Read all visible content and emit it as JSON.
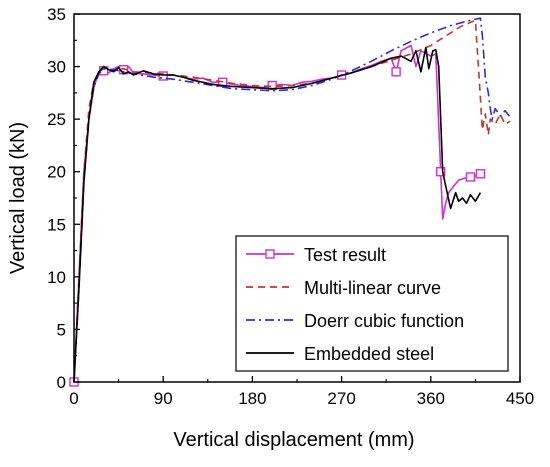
{
  "chart_data": {
    "type": "line",
    "title": "",
    "xlabel": "Vertical displacement (mm)",
    "ylabel": "Vertical load (kN)",
    "xlim": [
      0,
      450
    ],
    "ylim": [
      0,
      35
    ],
    "xticks": [
      0,
      90,
      180,
      270,
      360,
      450
    ],
    "yticks": [
      0,
      5,
      10,
      15,
      20,
      25,
      30,
      35
    ],
    "grid": false,
    "legend_position": "bottom-right",
    "series": [
      {
        "name": "Test result",
        "color": "#cc33cc",
        "dash": "solid",
        "marker": "open-square",
        "x": [
          0,
          5,
          10,
          15,
          20,
          25,
          30,
          35,
          40,
          45,
          50,
          55,
          60,
          70,
          80,
          90,
          100,
          110,
          120,
          130,
          140,
          150,
          160,
          170,
          180,
          190,
          200,
          210,
          220,
          230,
          240,
          250,
          260,
          270,
          280,
          290,
          300,
          310,
          320,
          325,
          330,
          340,
          345,
          350,
          360,
          365,
          370,
          372,
          375,
          378,
          382,
          388,
          395,
          400,
          405,
          410
        ],
        "y": [
          0,
          10,
          20,
          25,
          28,
          29.5,
          29.6,
          29.4,
          29.8,
          30.0,
          29.7,
          30.0,
          29.4,
          29.3,
          29.2,
          29.1,
          29.2,
          29.0,
          28.8,
          28.9,
          28.5,
          28.5,
          28.3,
          28.2,
          28.1,
          28.0,
          28.2,
          28.3,
          28.2,
          28.5,
          28.6,
          28.8,
          28.9,
          29.2,
          29.4,
          29.8,
          30.1,
          30.5,
          30.8,
          29.5,
          31.5,
          32.0,
          30.0,
          31.5,
          31.0,
          31.2,
          20.0,
          15.5,
          17.0,
          18.0,
          18.5,
          19.2,
          19.4,
          19.5,
          19.6,
          19.8
        ],
        "marker_indices": [
          0,
          6,
          10,
          15,
          21,
          26,
          33,
          39,
          46,
          53,
          55
        ]
      },
      {
        "name": "Multi-linear curve",
        "color": "#c0392b",
        "dash": "dashed",
        "x": [
          0,
          5,
          10,
          15,
          20,
          25,
          30,
          40,
          50,
          60,
          80,
          100,
          120,
          140,
          160,
          180,
          200,
          220,
          240,
          260,
          280,
          300,
          320,
          340,
          350,
          360,
          370,
          380,
          390,
          400,
          405,
          408,
          410,
          412,
          415,
          418,
          420,
          425,
          430,
          435,
          440
        ],
        "y": [
          0,
          10,
          20,
          26,
          28.5,
          29.5,
          29.8,
          29.6,
          29.8,
          29.5,
          29.4,
          29.2,
          29.0,
          28.7,
          28.4,
          28.2,
          28.1,
          28.2,
          28.4,
          28.9,
          29.4,
          30.0,
          30.6,
          31.2,
          31.6,
          32.0,
          32.6,
          33.2,
          33.8,
          34.2,
          34.4,
          30.0,
          27.0,
          24.0,
          25.5,
          23.5,
          25.0,
          24.5,
          25.5,
          24.5,
          24.8
        ]
      },
      {
        "name": "Doerr cubic function",
        "color": "#2b2bd9",
        "dash": "dashdot",
        "x": [
          0,
          5,
          10,
          15,
          20,
          25,
          30,
          40,
          50,
          60,
          80,
          100,
          120,
          140,
          160,
          180,
          200,
          220,
          240,
          260,
          280,
          300,
          320,
          340,
          360,
          380,
          400,
          410,
          412,
          415,
          418,
          420,
          422,
          425,
          430,
          435,
          440
        ],
        "y": [
          0,
          9,
          19,
          25,
          28,
          29.3,
          29.8,
          29.7,
          29.5,
          29.3,
          29.0,
          28.8,
          28.5,
          28.2,
          27.9,
          27.8,
          27.7,
          27.8,
          28.2,
          28.8,
          29.6,
          30.5,
          31.5,
          32.4,
          33.2,
          33.9,
          34.4,
          34.6,
          33.0,
          29.0,
          27.5,
          26.0,
          25.0,
          26.0,
          25.3,
          25.8,
          25.2
        ]
      },
      {
        "name": "Embedded steel",
        "color": "#000000",
        "dash": "solid",
        "x": [
          0,
          5,
          10,
          15,
          20,
          25,
          30,
          35,
          40,
          45,
          50,
          55,
          60,
          70,
          80,
          90,
          100,
          110,
          120,
          140,
          160,
          180,
          200,
          220,
          240,
          260,
          280,
          300,
          320,
          330,
          340,
          345,
          350,
          355,
          358,
          362,
          365,
          368,
          372,
          376,
          380,
          385,
          388,
          392,
          396,
          400,
          405,
          410
        ],
        "y": [
          0,
          9,
          19,
          25,
          28.5,
          29.5,
          30.0,
          29.7,
          29.5,
          29.9,
          29.3,
          29.5,
          29.2,
          29.6,
          29.3,
          29.2,
          29.2,
          29.0,
          28.7,
          28.3,
          28.1,
          28.0,
          27.9,
          28.0,
          28.4,
          28.9,
          29.4,
          30.0,
          30.8,
          31.0,
          30.5,
          31.5,
          29.5,
          31.8,
          29.8,
          31.5,
          31.6,
          30.0,
          20.0,
          18.2,
          16.5,
          18.0,
          17.2,
          17.5,
          17.0,
          17.8,
          17.2,
          18.0
        ]
      }
    ]
  }
}
